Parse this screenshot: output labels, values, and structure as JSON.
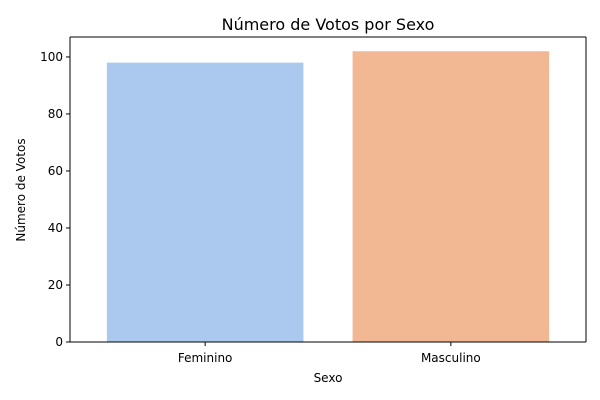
{
  "chart_data": {
    "type": "bar",
    "title": "Número de Votos por Sexo",
    "xlabel": "Sexo",
    "ylabel": "Número de Votos",
    "categories": [
      "Feminino",
      "Masculino"
    ],
    "values": [
      98,
      102
    ],
    "colors": [
      "#abc9ee",
      "#f1b893"
    ],
    "ylim": [
      0,
      107
    ],
    "yticks": [
      0,
      20,
      40,
      60,
      80,
      100
    ],
    "grid": false,
    "legend": "none"
  }
}
